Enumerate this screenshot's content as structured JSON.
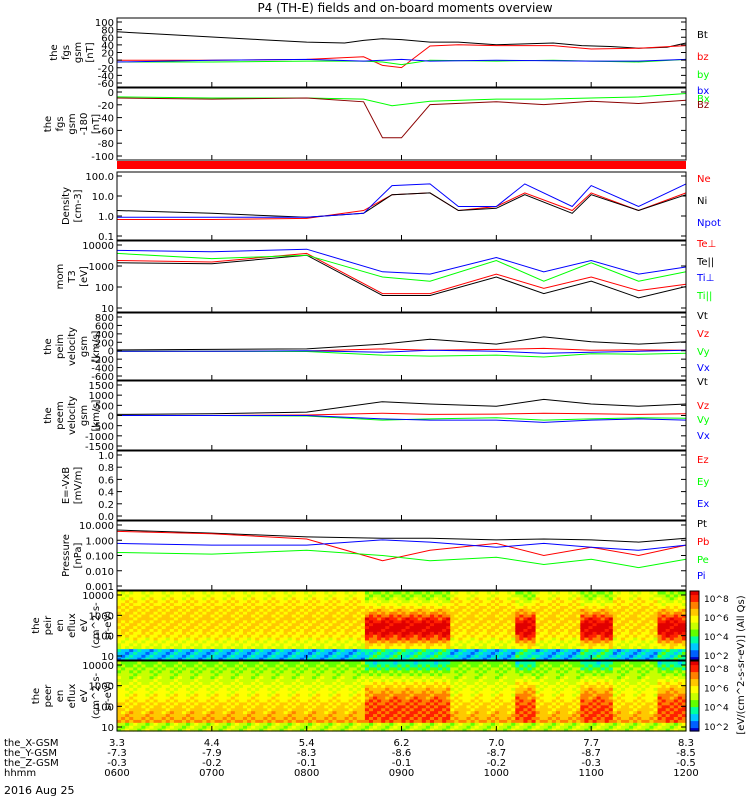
{
  "title": "P4 (TH-E) fields and on-board moments overview",
  "footer_date": "2016 Aug 25",
  "colors": {
    "black": "#000000",
    "red": "#ff0000",
    "green": "#00ff00",
    "blue": "#0000ff",
    "darkred": "#8b0000"
  },
  "chart_data": [
    {
      "id": "fgs_gsm",
      "type": "line",
      "ylabel": [
        "the",
        "fgs",
        "gsm",
        "[nT]"
      ],
      "yticks": [
        "100",
        "80",
        "60",
        "40",
        "20",
        "0",
        "-20",
        "-40",
        "-60"
      ],
      "ylim": [
        -60,
        100
      ],
      "series": [
        {
          "name": "Bt",
          "color": "#000000",
          "x": [
            6.0,
            6.5,
            7.0,
            7.5,
            8.0,
            8.4,
            8.6,
            8.8,
            9.0,
            9.3,
            9.6,
            10.0,
            10.3,
            10.6,
            10.9,
            11.2,
            11.5,
            11.8,
            12.0
          ],
          "y": [
            68,
            62,
            56,
            50,
            44,
            42,
            48,
            52,
            50,
            44,
            44,
            38,
            40,
            42,
            36,
            34,
            30,
            32,
            42
          ]
        },
        {
          "name": "bz",
          "color": "#ff0000",
          "x": [
            6.0,
            7.0,
            8.0,
            8.6,
            8.8,
            9.0,
            9.3,
            9.6,
            10.0,
            10.3,
            10.6,
            11.0,
            11.5,
            12.0
          ],
          "y": [
            2,
            2,
            4,
            10,
            -10,
            -15,
            35,
            38,
            36,
            36,
            36,
            28,
            30,
            36
          ]
        },
        {
          "name": "by",
          "color": "#00ff00",
          "x": [
            6.0,
            7.0,
            8.0,
            8.6,
            8.8,
            9.0,
            9.3,
            10.0,
            10.6,
            11.0,
            11.5,
            12.0
          ],
          "y": [
            -2,
            -2,
            0,
            0,
            -2,
            -8,
            2,
            0,
            2,
            0,
            -2,
            4
          ]
        },
        {
          "name": "bx",
          "color": "#0000ff",
          "x": [
            6.0,
            7.0,
            8.0,
            8.6,
            9.0,
            9.3,
            10.0,
            11.0,
            11.5,
            12.0
          ],
          "y": [
            -2,
            2,
            4,
            0,
            4,
            0,
            2,
            0,
            0,
            4
          ]
        }
      ]
    },
    {
      "id": "fgs_gse_dsl",
      "type": "line",
      "ylabel": [
        "the",
        "fgs",
        "gsm",
        "-180",
        "[nT]"
      ],
      "yticks": [
        "0",
        "-20",
        "-40",
        "-60",
        "-80",
        "-100"
      ],
      "ylim": [
        -110,
        20
      ],
      "series": [
        {
          "name": "Bx",
          "color": "#00ff00",
          "x": [
            6.0,
            7.0,
            8.0,
            8.6,
            8.9,
            9.1,
            9.3,
            10.0,
            10.5,
            11.0,
            11.5,
            12.0
          ],
          "y": [
            4,
            2,
            2,
            0,
            -12,
            -8,
            -4,
            0,
            0,
            2,
            4,
            10
          ]
        },
        {
          "name": "Bz",
          "color": "#8b0000",
          "x": [
            6.0,
            7.0,
            8.0,
            8.6,
            8.8,
            9.0,
            9.3,
            10.0,
            10.5,
            11.0,
            11.5,
            12.0
          ],
          "y": [
            2,
            0,
            2,
            -5,
            -70,
            -70,
            -10,
            -5,
            -10,
            -4,
            -8,
            -2
          ]
        }
      ]
    },
    {
      "id": "density",
      "type": "line",
      "ylog": true,
      "ylabel": [
        "Density",
        "[cm-3]"
      ],
      "yticks": [
        "100.0",
        "10.0",
        "1.0",
        "0.1"
      ],
      "ylim": [
        0.1,
        100
      ],
      "series": [
        {
          "name": "Ne",
          "color": "#ff0000",
          "x": [
            6.0,
            7.0,
            8.0,
            8.6,
            8.9,
            9.3,
            9.6,
            10.0,
            10.3,
            10.8,
            11.0,
            11.5,
            12.0
          ],
          "y": [
            0.8,
            0.8,
            0.9,
            2,
            10,
            12,
            2,
            3,
            12,
            2,
            12,
            2,
            12
          ]
        },
        {
          "name": "Ni",
          "color": "#000000",
          "x": [
            6.0,
            7.0,
            8.0,
            8.6,
            8.9,
            9.3,
            9.6,
            10.0,
            10.3,
            10.8,
            11.0,
            11.5,
            12.0
          ],
          "y": [
            2.0,
            1.5,
            1.0,
            1.5,
            10,
            12,
            2,
            2.5,
            10,
            1.5,
            10,
            2,
            10
          ]
        },
        {
          "name": "Npot",
          "color": "#0000ff",
          "x": [
            6.0,
            7.0,
            8.0,
            8.6,
            8.9,
            9.3,
            9.6,
            10.0,
            10.3,
            10.8,
            11.0,
            11.5,
            12.0
          ],
          "y": [
            1.0,
            1.0,
            1.0,
            1.5,
            25,
            30,
            3,
            3,
            30,
            3,
            25,
            3,
            30
          ]
        }
      ]
    },
    {
      "id": "mom_temp",
      "type": "line",
      "ylog": true,
      "ylabel": [
        "mom",
        "T3",
        "[eV]"
      ],
      "yticks": [
        "10000",
        "1000",
        "100",
        "10"
      ],
      "ylim": [
        10,
        10000
      ],
      "series": [
        {
          "name": "Te⊥",
          "color": "#ff0000",
          "x": [
            6.0,
            7.0,
            8.0,
            8.8,
            9.3,
            10.0,
            10.5,
            11.0,
            11.5,
            12.0
          ],
          "y": [
            1500,
            1300,
            3000,
            60,
            60,
            400,
            100,
            300,
            80,
            150
          ]
        },
        {
          "name": "Te||",
          "color": "#000000",
          "x": [
            6.0,
            7.0,
            8.0,
            8.8,
            9.3,
            10.0,
            10.5,
            11.0,
            11.5,
            12.0
          ],
          "y": [
            1200,
            1100,
            2500,
            50,
            50,
            300,
            60,
            200,
            40,
            120
          ]
        },
        {
          "name": "Ti⊥",
          "color": "#0000ff",
          "x": [
            6.0,
            7.0,
            8.0,
            8.8,
            9.3,
            10.0,
            10.5,
            11.0,
            11.5,
            12.0
          ],
          "y": [
            4000,
            3500,
            4500,
            500,
            400,
            2000,
            500,
            1500,
            400,
            800
          ]
        },
        {
          "name": "Ti||",
          "color": "#00ff00",
          "x": [
            6.0,
            7.0,
            8.0,
            8.8,
            9.3,
            10.0,
            10.5,
            11.0,
            11.5,
            12.0
          ],
          "y": [
            3000,
            1800,
            2500,
            300,
            200,
            1500,
            200,
            1200,
            200,
            500
          ]
        }
      ]
    },
    {
      "id": "peim_velocity",
      "type": "line",
      "ylabel": [
        "the",
        "peim",
        "velocity",
        "gsm",
        "[km/s]"
      ],
      "yticks": [
        "800",
        "600",
        "400",
        "200",
        "0",
        "-200",
        "-400",
        "-600"
      ],
      "ylim": [
        -600,
        800
      ],
      "series": [
        {
          "name": "Vt",
          "color": "#000000",
          "x": [
            6.0,
            7.0,
            8.0,
            8.8,
            9.3,
            10.0,
            10.5,
            11.0,
            11.5,
            12.0
          ],
          "y": [
            30,
            40,
            50,
            150,
            250,
            150,
            300,
            200,
            150,
            200
          ]
        },
        {
          "name": "Vz",
          "color": "#ff0000",
          "x": [
            6.0,
            7.0,
            8.0,
            8.8,
            9.3,
            10.0,
            10.5,
            11.0,
            11.5,
            12.0
          ],
          "y": [
            0,
            0,
            5,
            50,
            20,
            40,
            60,
            20,
            30,
            20
          ]
        },
        {
          "name": "Vy",
          "color": "#00ff00",
          "x": [
            6.0,
            7.0,
            8.0,
            8.8,
            9.3,
            10.0,
            10.5,
            11.0,
            11.5,
            12.0
          ],
          "y": [
            0,
            0,
            -5,
            -80,
            -100,
            -80,
            -120,
            -50,
            -60,
            -40
          ]
        },
        {
          "name": "Vx",
          "color": "#0000ff",
          "x": [
            6.0,
            7.0,
            8.0,
            8.8,
            9.3,
            10.0,
            10.5,
            11.0,
            11.5,
            12.0
          ],
          "y": [
            0,
            0,
            10,
            -20,
            20,
            0,
            -40,
            -20,
            0,
            20
          ]
        }
      ]
    },
    {
      "id": "peem_velocity",
      "type": "line",
      "ylabel": [
        "the",
        "peem",
        "velocity",
        "gsm",
        "[km/s]"
      ],
      "yticks": [
        "1500",
        "1000",
        "500",
        "0",
        "-500",
        "-1000",
        "-1500"
      ],
      "ylim": [
        -1500,
        1500
      ],
      "series": [
        {
          "name": "Vt",
          "color": "#000000",
          "x": [
            6.0,
            7.0,
            8.0,
            8.8,
            9.3,
            10.0,
            10.5,
            11.0,
            11.5,
            12.0
          ],
          "y": [
            50,
            80,
            150,
            600,
            500,
            400,
            700,
            500,
            400,
            500
          ]
        },
        {
          "name": "Vz",
          "color": "#ff0000",
          "x": [
            6.0,
            7.0,
            8.0,
            8.8,
            9.3,
            10.0,
            10.5,
            11.0,
            11.5,
            12.0
          ],
          "y": [
            0,
            0,
            20,
            100,
            50,
            60,
            100,
            80,
            50,
            80
          ]
        },
        {
          "name": "Vy",
          "color": "#00ff00",
          "x": [
            6.0,
            7.0,
            8.0,
            8.8,
            9.3,
            10.0,
            10.5,
            11.0,
            11.5,
            12.0
          ],
          "y": [
            0,
            0,
            -20,
            -200,
            -150,
            -100,
            -200,
            -150,
            -100,
            -120
          ]
        },
        {
          "name": "Vx",
          "color": "#0000ff",
          "x": [
            6.0,
            7.0,
            8.0,
            8.8,
            9.3,
            10.0,
            10.5,
            11.0,
            11.5,
            12.0
          ],
          "y": [
            0,
            0,
            0,
            -150,
            -200,
            -200,
            -300,
            -200,
            -150,
            -200
          ]
        }
      ]
    },
    {
      "id": "efield",
      "type": "line",
      "ylabel": [
        "E=-VxB",
        "[mV/m]"
      ],
      "yticks": [
        "1.0",
        "0.8",
        "0.6",
        "0.4",
        "0.2",
        "0.0"
      ],
      "ylim": [
        0,
        1
      ],
      "series": [
        {
          "name": "Ez",
          "color": "#ff0000",
          "x": [],
          "y": []
        },
        {
          "name": "Ey",
          "color": "#00ff00",
          "x": [],
          "y": []
        },
        {
          "name": "Ex",
          "color": "#0000ff",
          "x": [],
          "y": []
        }
      ]
    },
    {
      "id": "pressure",
      "type": "line",
      "ylog": true,
      "ylabel": [
        "Pressure",
        "[nPa]"
      ],
      "yticks": [
        "10.000",
        "1.000",
        "0.100",
        "0.010",
        "0.001"
      ],
      "ylim": [
        0.001,
        10
      ],
      "series": [
        {
          "name": "Pt",
          "color": "#000000",
          "x": [
            6.0,
            7.0,
            8.0,
            8.8,
            9.3,
            10.0,
            10.5,
            11.0,
            11.5,
            12.0
          ],
          "y": [
            3,
            2,
            1.2,
            1.0,
            1.0,
            0.8,
            0.9,
            0.8,
            0.6,
            1.0
          ]
        },
        {
          "name": "Pb",
          "color": "#ff0000",
          "x": [
            6.0,
            7.0,
            8.0,
            8.8,
            9.3,
            10.0,
            10.5,
            11.0,
            11.5,
            12.0
          ],
          "y": [
            2.5,
            1.8,
            0.9,
            0.05,
            0.2,
            0.5,
            0.1,
            0.3,
            0.1,
            0.4
          ]
        },
        {
          "name": "Pe",
          "color": "#00ff00",
          "x": [
            6.0,
            7.0,
            8.0,
            8.8,
            9.3,
            10.0,
            10.5,
            11.0,
            11.5,
            12.0
          ],
          "y": [
            0.15,
            0.12,
            0.2,
            0.1,
            0.05,
            0.08,
            0.03,
            0.06,
            0.02,
            0.06
          ]
        },
        {
          "name": "Pi",
          "color": "#0000ff",
          "x": [
            6.0,
            7.0,
            8.0,
            8.8,
            9.3,
            10.0,
            10.5,
            11.0,
            11.5,
            12.0
          ],
          "y": [
            0.5,
            0.4,
            0.4,
            0.8,
            0.6,
            0.3,
            0.5,
            0.3,
            0.2,
            0.4
          ]
        }
      ]
    },
    {
      "id": "peir_spec",
      "type": "heatmap",
      "ylog": true,
      "ylabel": [
        "the",
        "peir",
        "en",
        "eflux",
        "eV",
        "(cm^2-s-",
        "sr-eV)"
      ],
      "yticks": [
        "10000",
        "1000",
        "100",
        "10"
      ],
      "ylim": [
        5,
        30000
      ],
      "colorbar_ticks": [
        "10^8",
        "10^6",
        "10^4",
        "10^2"
      ]
    },
    {
      "id": "peer_spec",
      "type": "heatmap",
      "ylog": true,
      "ylabel": [
        "the",
        "peer",
        "en",
        "eflux",
        "eV",
        "(cm^2-s-",
        "sr-eV)"
      ],
      "yticks": [
        "10000",
        "1000",
        "100",
        "10"
      ],
      "ylim": [
        5,
        30000
      ],
      "colorbar_ticks": [
        "10^8",
        "10^6",
        "10^4",
        "10^2"
      ]
    }
  ],
  "colorbar_label": "[eV/(cm^2-s-sr-eV)] (All Qs)",
  "xaxis": {
    "rows": [
      {
        "label": "the_X-GSM",
        "values": [
          "3.3",
          "4.4",
          "5.4",
          "6.2",
          "7.0",
          "7.7",
          "8.3"
        ]
      },
      {
        "label": "the_Y-GSM",
        "values": [
          "-7.3",
          "-7.9",
          "-8.3",
          "-8.6",
          "-8.7",
          "-8.7",
          "-8.5"
        ]
      },
      {
        "label": "the_Z-GSM",
        "values": [
          "-0.3",
          "-0.2",
          "-0.1",
          "-0.1",
          "-0.2",
          "-0.3",
          "-0.5"
        ]
      },
      {
        "label": "hhmm",
        "values": [
          "0600",
          "0700",
          "0800",
          "0900",
          "1000",
          "1100",
          "1200"
        ]
      }
    ],
    "range_hours": [
      6,
      12
    ]
  }
}
